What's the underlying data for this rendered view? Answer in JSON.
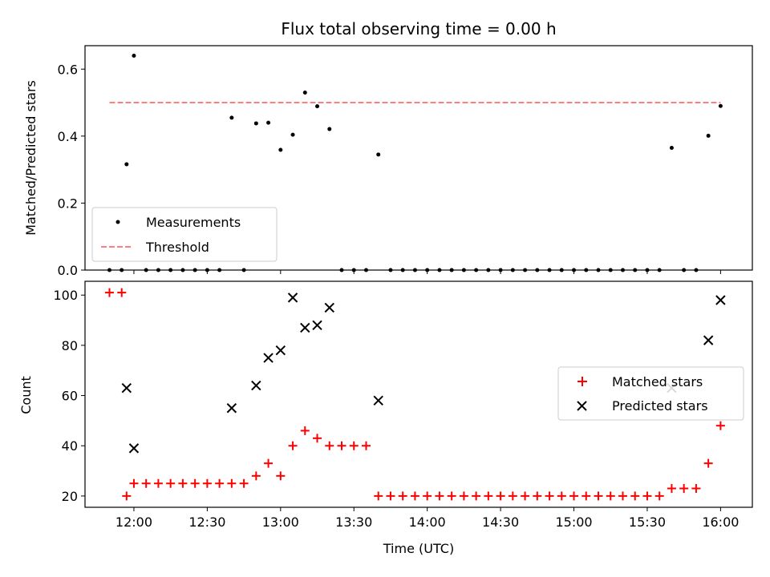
{
  "figure": {
    "title": "Flux total observing time = 0.00 h",
    "x_label": "Time (UTC)",
    "x_ticks": [
      "12:00",
      "12:30",
      "13:00",
      "13:30",
      "14:00",
      "14:30",
      "15:00",
      "15:30",
      "16:00"
    ]
  },
  "chart_data": [
    {
      "type": "scatter",
      "panel": "top",
      "ylabel": "Matched/Predicted stars",
      "ylim": [
        0,
        0.67
      ],
      "yticks": [
        "0.0",
        "0.2",
        "0.4",
        "0.6"
      ],
      "xlim": [
        "11:40",
        "16:13"
      ],
      "grid": false,
      "legend_position": "lower-left",
      "threshold": {
        "name": "Threshold",
        "y": 0.5,
        "x_range": [
          "11:50",
          "16:00"
        ],
        "color": "#ff7f7f",
        "style": "dashed"
      },
      "series": [
        {
          "name": "Measurements",
          "color": "#000000",
          "marker": "dot",
          "points": [
            [
              "11:50",
              0
            ],
            [
              "11:55",
              0
            ],
            [
              "11:57",
              0.316
            ],
            [
              "12:00",
              0.64
            ],
            [
              "12:05",
              0
            ],
            [
              "12:10",
              0
            ],
            [
              "12:15",
              0
            ],
            [
              "12:20",
              0
            ],
            [
              "12:25",
              0
            ],
            [
              "12:30",
              0
            ],
            [
              "12:35",
              0
            ],
            [
              "12:40",
              0.455
            ],
            [
              "12:45",
              0
            ],
            [
              "12:50",
              0.438
            ],
            [
              "12:55",
              0.44
            ],
            [
              "13:00",
              0.359
            ],
            [
              "13:05",
              0.404
            ],
            [
              "13:10",
              0.53
            ],
            [
              "13:15",
              0.489
            ],
            [
              "13:20",
              0.421
            ],
            [
              "13:25",
              0
            ],
            [
              "13:30",
              0
            ],
            [
              "13:35",
              0
            ],
            [
              "13:40",
              0.345
            ],
            [
              "13:45",
              0
            ],
            [
              "13:50",
              0
            ],
            [
              "13:55",
              0
            ],
            [
              "14:00",
              0
            ],
            [
              "14:05",
              0
            ],
            [
              "14:10",
              0
            ],
            [
              "14:15",
              0
            ],
            [
              "14:20",
              0
            ],
            [
              "14:25",
              0
            ],
            [
              "14:30",
              0
            ],
            [
              "14:35",
              0
            ],
            [
              "14:40",
              0
            ],
            [
              "14:45",
              0
            ],
            [
              "14:50",
              0
            ],
            [
              "14:55",
              0
            ],
            [
              "15:00",
              0
            ],
            [
              "15:05",
              0
            ],
            [
              "15:10",
              0
            ],
            [
              "15:15",
              0
            ],
            [
              "15:20",
              0
            ],
            [
              "15:25",
              0
            ],
            [
              "15:30",
              0
            ],
            [
              "15:35",
              0
            ],
            [
              "15:40",
              0.365
            ],
            [
              "15:45",
              0
            ],
            [
              "15:50",
              0
            ],
            [
              "15:55",
              0.401
            ],
            [
              "16:00",
              0.49
            ]
          ]
        }
      ]
    },
    {
      "type": "scatter",
      "panel": "bottom",
      "ylabel": "Count",
      "ylim": [
        15.5,
        105.5
      ],
      "yticks": [
        "20",
        "40",
        "60",
        "80",
        "100"
      ],
      "xlim": [
        "11:40",
        "16:13"
      ],
      "grid": false,
      "legend_position": "center-right",
      "series": [
        {
          "name": "Matched stars",
          "color": "#ff0000",
          "marker": "plus",
          "points": [
            [
              "11:50",
              101
            ],
            [
              "11:55",
              101
            ],
            [
              "11:57",
              20
            ],
            [
              "12:00",
              25
            ],
            [
              "12:05",
              25
            ],
            [
              "12:10",
              25
            ],
            [
              "12:15",
              25
            ],
            [
              "12:20",
              25
            ],
            [
              "12:25",
              25
            ],
            [
              "12:30",
              25
            ],
            [
              "12:35",
              25
            ],
            [
              "12:40",
              25
            ],
            [
              "12:45",
              25
            ],
            [
              "12:50",
              28
            ],
            [
              "12:55",
              33
            ],
            [
              "13:00",
              28
            ],
            [
              "13:05",
              40
            ],
            [
              "13:10",
              46
            ],
            [
              "13:15",
              43
            ],
            [
              "13:20",
              40
            ],
            [
              "13:25",
              40
            ],
            [
              "13:30",
              40
            ],
            [
              "13:35",
              40
            ],
            [
              "13:40",
              20
            ],
            [
              "13:45",
              20
            ],
            [
              "13:50",
              20
            ],
            [
              "13:55",
              20
            ],
            [
              "14:00",
              20
            ],
            [
              "14:05",
              20
            ],
            [
              "14:10",
              20
            ],
            [
              "14:15",
              20
            ],
            [
              "14:20",
              20
            ],
            [
              "14:25",
              20
            ],
            [
              "14:30",
              20
            ],
            [
              "14:35",
              20
            ],
            [
              "14:40",
              20
            ],
            [
              "14:45",
              20
            ],
            [
              "14:50",
              20
            ],
            [
              "14:55",
              20
            ],
            [
              "15:00",
              20
            ],
            [
              "15:05",
              20
            ],
            [
              "15:10",
              20
            ],
            [
              "15:15",
              20
            ],
            [
              "15:20",
              20
            ],
            [
              "15:25",
              20
            ],
            [
              "15:30",
              20
            ],
            [
              "15:35",
              20
            ],
            [
              "15:40",
              23
            ],
            [
              "15:45",
              23
            ],
            [
              "15:50",
              23
            ],
            [
              "15:55",
              33
            ],
            [
              "16:00",
              48
            ]
          ]
        },
        {
          "name": "Predicted stars",
          "color": "#000000",
          "marker": "cross",
          "points": [
            [
              "11:57",
              63
            ],
            [
              "12:00",
              39
            ],
            [
              "12:40",
              55
            ],
            [
              "12:50",
              64
            ],
            [
              "12:55",
              75
            ],
            [
              "13:00",
              78
            ],
            [
              "13:05",
              99
            ],
            [
              "13:10",
              87
            ],
            [
              "13:15",
              88
            ],
            [
              "13:20",
              95
            ],
            [
              "13:40",
              58
            ],
            [
              "15:40",
              63
            ],
            [
              "15:55",
              82
            ],
            [
              "16:00",
              98
            ]
          ]
        }
      ]
    }
  ]
}
